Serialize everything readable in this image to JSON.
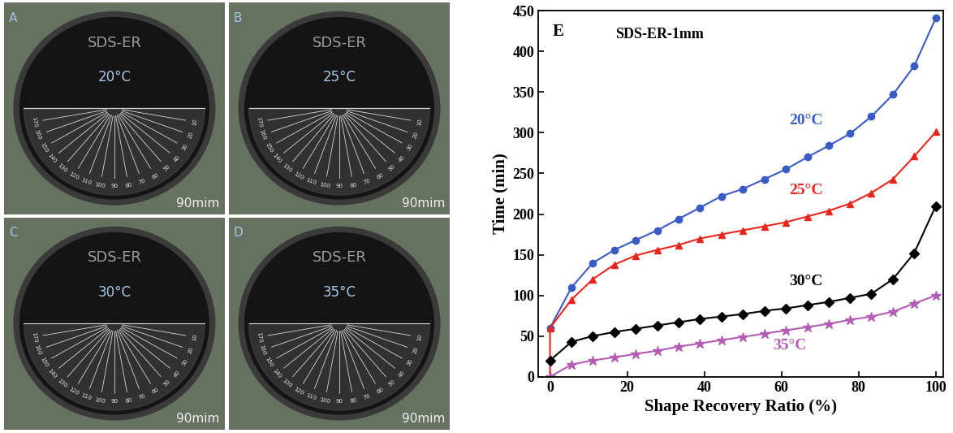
{
  "panels": [
    {
      "letter": "A",
      "label": "SDS-ER",
      "temperature": "20°C",
      "time": "90mim"
    },
    {
      "letter": "B",
      "label": "SDS-ER",
      "temperature": "25°C",
      "time": "90mim"
    },
    {
      "letter": "C",
      "label": "SDS-ER",
      "temperature": "30°C",
      "time": "90mim"
    },
    {
      "letter": "D",
      "label": "SDS-ER",
      "temperature": "35°C",
      "time": "90mim"
    }
  ],
  "protractor_labels": [
    10,
    20,
    30,
    40,
    50,
    60,
    70,
    80,
    90,
    100,
    110,
    120,
    130,
    140,
    150,
    160,
    170
  ],
  "chart_data": {
    "type": "line",
    "panel_label": "E",
    "title": "SDS-ER-1mm",
    "x_label": "Shape Recovery Ratio (%)",
    "y_label": "Time (min)",
    "xlim": [
      -3,
      102
    ],
    "ylim": [
      0,
      450
    ],
    "xticks": [
      0,
      20,
      40,
      60,
      80,
      100
    ],
    "yticks": [
      0,
      50,
      100,
      150,
      200,
      250,
      300,
      350,
      400,
      450
    ],
    "series": [
      {
        "name": "20°C",
        "color": "#3b5bc4",
        "marker": "circle",
        "x": [
          0,
          5.6,
          11.1,
          16.7,
          22.2,
          27.8,
          33.3,
          38.9,
          44.4,
          50,
          55.6,
          61.1,
          66.7,
          72.2,
          77.8,
          83.3,
          88.9,
          94.4,
          100
        ],
        "values": [
          60,
          110,
          140,
          156,
          168,
          180,
          194,
          208,
          222,
          231,
          243,
          255,
          270,
          284,
          299,
          320,
          347,
          382,
          441
        ]
      },
      {
        "name": "25°C",
        "color": "#e8261e",
        "marker": "triangle",
        "x": [
          0,
          0,
          5.6,
          11.1,
          16.7,
          22.2,
          27.8,
          33.3,
          38.9,
          44.4,
          50,
          55.6,
          61.1,
          66.7,
          72.2,
          77.8,
          83.3,
          88.9,
          94.4,
          100
        ],
        "values": [
          0,
          60,
          95,
          120,
          138,
          149,
          156,
          162,
          170,
          175,
          180,
          185,
          190,
          197,
          204,
          213,
          226,
          243,
          271,
          301
        ]
      },
      {
        "name": "30°C",
        "color": "#000000",
        "marker": "diamond",
        "x": [
          0,
          5.6,
          11.1,
          16.7,
          22.2,
          27.8,
          33.3,
          38.9,
          44.4,
          50,
          55.6,
          61.1,
          66.7,
          72.2,
          77.8,
          83.3,
          88.9,
          94.4,
          100
        ],
        "values": [
          20,
          43,
          50,
          55,
          59,
          63,
          67,
          71,
          74,
          77,
          81,
          84,
          88,
          92,
          97,
          102,
          120,
          152,
          210
        ]
      },
      {
        "name": "35°C",
        "color": "#b35cb3",
        "marker": "star",
        "x": [
          0,
          5.6,
          11.1,
          16.7,
          22.2,
          27.8,
          33.3,
          38.9,
          44.4,
          50,
          55.6,
          61.1,
          66.7,
          72.2,
          77.8,
          83.3,
          88.9,
          94.4,
          100
        ],
        "values": [
          0,
          15,
          20,
          24,
          28,
          32,
          37,
          41,
          45,
          49,
          53,
          57,
          61,
          65,
          70,
          74,
          80,
          90,
          100
        ]
      }
    ]
  }
}
